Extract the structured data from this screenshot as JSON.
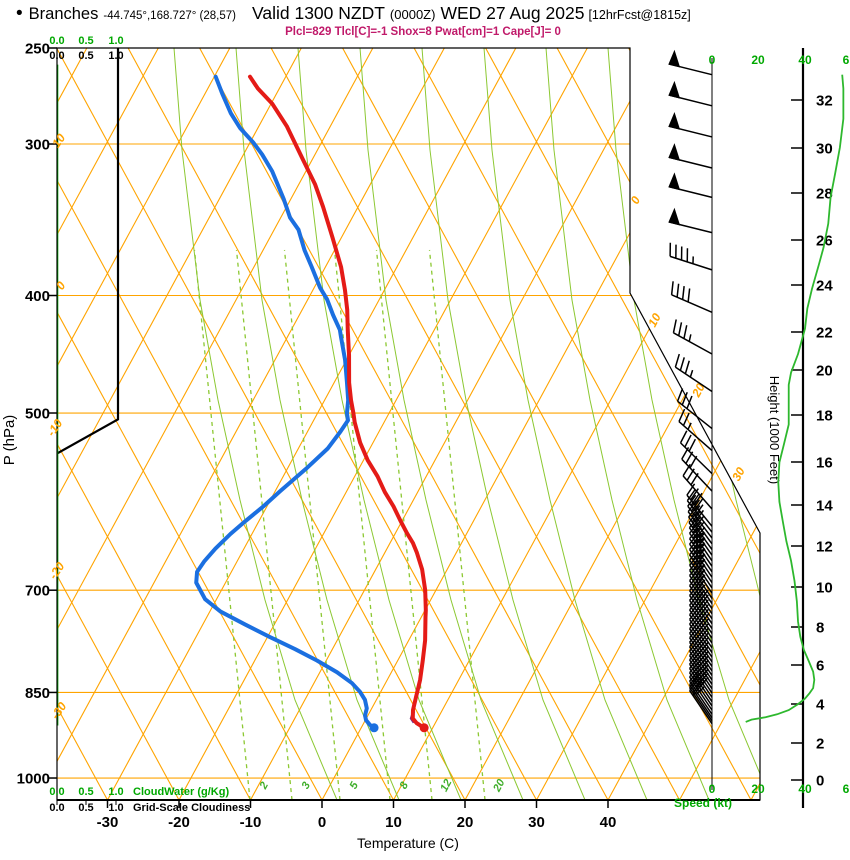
{
  "header": {
    "bullet": "•",
    "station": "Branches",
    "coords": "-44.745°,168.727° (28,57)",
    "valid_prefix": "Valid 1300 NZDT",
    "valid_zulu": "(0000Z)",
    "valid_date": "WED 27 Aug 2025",
    "fcst": "[12hrFcst@1815z]",
    "params": "Plcl=829 Tlcl[C]=-1 Shox=8 Pwat[cm]=1 Cape[J]= 0"
  },
  "colors": {
    "grid_orange": "#FFA400",
    "moist_green": "#8CC832",
    "mix_label_green": "#3FAE2A",
    "axis_green": "#00A800",
    "speed_curve_green": "#2EB82E",
    "temp_red": "#E41B17",
    "dew_blue": "#1B6FE0",
    "parcel_purple": "#7B2D8B",
    "subtitle_magenta": "#c01a6a",
    "black": "#000000"
  },
  "chart_data": {
    "type": "skewt_log_p_sounding",
    "title": "Branches sounding valid 1300 NZDT (0000Z) WED 27 Aug 2025",
    "pressure_axis": {
      "label": "P (hPa)",
      "ticks": [
        250,
        300,
        400,
        500,
        700,
        850,
        1000
      ],
      "range": [
        250,
        1045
      ]
    },
    "temp_axis": {
      "label": "Temperature (C)",
      "ticks": [
        -30,
        -20,
        -10,
        0,
        10,
        20,
        30,
        40
      ]
    },
    "height_axis": {
      "label": "Height (1000 Feet)",
      "ticks": [
        0,
        2,
        4,
        6,
        8,
        10,
        12,
        14,
        16,
        18,
        20,
        22,
        24,
        26,
        28,
        30,
        32
      ]
    },
    "speed_axis": {
      "label": "Speed (kt)",
      "ticks": [
        "0",
        "20",
        "40",
        "6"
      ]
    },
    "cloudwater_scale": {
      "labels": [
        "0.0",
        "0.5",
        "1.0"
      ],
      "title": "CloudWater (g/Kg)"
    },
    "cloudiness_scale": {
      "labels": [
        "0.0",
        "0.5",
        "1.0"
      ],
      "title": "Grid-Scale Cloudiness"
    },
    "isotherm_edge_labels": [
      "0",
      "10",
      "20",
      "30"
    ],
    "dry_adiabat_edge_labels": [
      "10",
      "0",
      "-10",
      "-20",
      "-30"
    ],
    "mixing_ratio_labels": [
      "2",
      "3",
      "5",
      "8",
      "12",
      "20"
    ],
    "temperature_C": [
      [
        264,
        -65
      ],
      [
        270,
        -63
      ],
      [
        278,
        -59.8
      ],
      [
        290,
        -56.1
      ],
      [
        309,
        -51.3
      ],
      [
        324,
        -47.7
      ],
      [
        338,
        -44.9
      ],
      [
        358,
        -41.3
      ],
      [
        379,
        -37.8
      ],
      [
        396,
        -35.5
      ],
      [
        411,
        -33.7
      ],
      [
        427,
        -32.1
      ],
      [
        448,
        -30
      ],
      [
        472,
        -27.9
      ],
      [
        488,
        -26.3
      ],
      [
        500,
        -25
      ],
      [
        509,
        -24.1
      ],
      [
        529,
        -21.8
      ],
      [
        547,
        -19.4
      ],
      [
        564,
        -16.8
      ],
      [
        581,
        -14.6
      ],
      [
        597,
        -12.3
      ],
      [
        613,
        -10.3
      ],
      [
        628,
        -8.4
      ],
      [
        640,
        -6.8
      ],
      [
        652,
        -5.5
      ],
      [
        673,
        -3.5
      ],
      [
        700,
        -1.5
      ],
      [
        727,
        0.1
      ],
      [
        737,
        0.6
      ],
      [
        770,
        2.3
      ],
      [
        800,
        3.5
      ],
      [
        830,
        4.6
      ],
      [
        860,
        5.4
      ],
      [
        879,
        5.9
      ],
      [
        893,
        6.5
      ],
      [
        901,
        7.4
      ],
      [
        909,
        8.8
      ]
    ],
    "dewpoint_C": [
      [
        264,
        -69.8
      ],
      [
        273,
        -67.5
      ],
      [
        283,
        -64.9
      ],
      [
        291,
        -62.5
      ],
      [
        299,
        -59.6
      ],
      [
        306,
        -57.4
      ],
      [
        316,
        -54.7
      ],
      [
        333,
        -51
      ],
      [
        345,
        -48.7
      ],
      [
        353,
        -46.6
      ],
      [
        367,
        -44.2
      ],
      [
        379,
        -41.9
      ],
      [
        394,
        -39.2
      ],
      [
        403,
        -37.3
      ],
      [
        415,
        -35.3
      ],
      [
        427,
        -33.2
      ],
      [
        432,
        -32.6
      ],
      [
        452,
        -30.2
      ],
      [
        472,
        -28.2
      ],
      [
        488,
        -26.7
      ],
      [
        500,
        -25.9
      ],
      [
        507,
        -25.2
      ],
      [
        518,
        -25.4
      ],
      [
        535,
        -25.9
      ],
      [
        556,
        -27.4
      ],
      [
        580,
        -29.3
      ],
      [
        597,
        -30.5
      ],
      [
        614,
        -31.9
      ],
      [
        629,
        -33
      ],
      [
        647,
        -34
      ],
      [
        663,
        -34.6
      ],
      [
        676,
        -34.8
      ],
      [
        690,
        -34.1
      ],
      [
        712,
        -31.6
      ],
      [
        729,
        -28.5
      ],
      [
        747,
        -24.1
      ],
      [
        765,
        -19.7
      ],
      [
        783,
        -15.2
      ],
      [
        800,
        -11.3
      ],
      [
        818,
        -7.6
      ],
      [
        835,
        -4.7
      ],
      [
        849,
        -2.9
      ],
      [
        862,
        -1.6
      ],
      [
        876,
        -0.7
      ],
      [
        888,
        -0.4
      ],
      [
        896,
        0.1
      ],
      [
        904,
        1.0
      ],
      [
        909,
        1.8
      ]
    ],
    "parcel_stub_C": [
      [
        881,
        6.1
      ],
      [
        893,
        6.3
      ],
      [
        900,
        7.0
      ]
    ],
    "wind_speed_kt": [
      [
        263,
        56
      ],
      [
        270,
        56.5
      ],
      [
        286,
        56.5
      ],
      [
        302,
        55
      ],
      [
        317,
        53
      ],
      [
        332,
        51
      ],
      [
        349,
        50
      ],
      [
        365,
        48
      ],
      [
        377,
        46
      ],
      [
        395,
        43
      ],
      [
        410,
        41
      ],
      [
        426,
        40
      ],
      [
        447,
        37
      ],
      [
        463,
        34
      ],
      [
        474,
        33
      ],
      [
        492,
        33
      ],
      [
        511,
        33
      ],
      [
        530,
        31
      ],
      [
        549,
        29
      ],
      [
        570,
        28.5
      ],
      [
        592,
        29
      ],
      [
        615,
        30.5
      ],
      [
        638,
        32
      ],
      [
        662,
        34
      ],
      [
        688,
        35.5
      ],
      [
        715,
        36.5
      ],
      [
        743,
        37
      ],
      [
        765,
        38
      ],
      [
        784,
        39.5
      ],
      [
        800,
        41.5
      ],
      [
        817,
        43.5
      ],
      [
        830,
        44
      ],
      [
        843,
        43.5
      ],
      [
        851,
        42
      ],
      [
        860,
        40
      ],
      [
        869,
        37
      ],
      [
        879,
        33
      ],
      [
        886,
        28
      ],
      [
        891,
        23
      ],
      [
        895,
        17
      ],
      [
        899,
        14.5
      ]
    ],
    "wind_barbs_kt": [
      [
        263,
        50
      ],
      [
        279,
        50
      ],
      [
        296,
        50
      ],
      [
        314,
        50
      ],
      [
        332,
        50
      ],
      [
        355,
        50
      ],
      [
        381,
        45
      ],
      [
        413,
        40
      ],
      [
        447,
        35
      ],
      [
        480,
        35
      ],
      [
        515,
        30
      ],
      [
        537,
        25
      ],
      [
        561,
        30
      ],
      [
        580,
        30
      ],
      [
        600,
        30
      ],
      [
        620,
        30
      ],
      [
        627,
        30
      ],
      [
        634,
        30
      ],
      [
        641,
        30
      ],
      [
        648,
        30
      ],
      [
        655,
        35
      ],
      [
        662,
        35
      ],
      [
        669,
        35
      ],
      [
        676,
        35
      ],
      [
        683,
        35
      ],
      [
        690,
        35
      ],
      [
        697,
        35
      ],
      [
        704,
        35
      ],
      [
        711,
        35
      ],
      [
        718,
        35
      ],
      [
        725,
        35
      ],
      [
        732,
        35
      ],
      [
        739,
        40
      ],
      [
        746,
        40
      ],
      [
        753,
        40
      ],
      [
        760,
        40
      ],
      [
        767,
        40
      ],
      [
        774,
        40
      ],
      [
        781,
        40
      ],
      [
        788,
        40
      ],
      [
        795,
        40
      ],
      [
        802,
        45
      ],
      [
        809,
        45
      ],
      [
        816,
        45
      ],
      [
        823,
        45
      ],
      [
        830,
        45
      ],
      [
        837,
        45
      ],
      [
        844,
        45
      ],
      [
        851,
        40
      ],
      [
        858,
        40
      ],
      [
        865,
        40
      ],
      [
        872,
        40
      ],
      [
        879,
        35
      ],
      [
        886,
        30
      ],
      [
        892,
        25
      ],
      [
        897,
        20
      ],
      [
        902,
        15
      ]
    ],
    "grid_scale_cloudiness": [
      [
        250,
        1
      ],
      [
        506,
        1
      ],
      [
        540,
        0
      ],
      [
        905,
        0
      ]
    ],
    "cloud_water_gkg": [
      [
        258,
        0
      ],
      [
        905,
        0
      ]
    ],
    "mixing_ratio_lines_gkg": [
      2,
      3,
      5,
      8,
      12,
      20
    ],
    "surface_pressure_hPa": 905
  }
}
